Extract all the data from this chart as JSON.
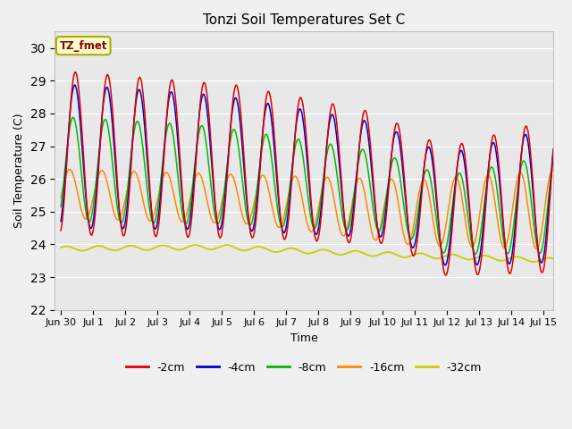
{
  "title": "Tonzi Soil Temperatures Set C",
  "xlabel": "Time",
  "ylabel": "Soil Temperature (C)",
  "annotation": "TZ_fmet",
  "ylim": [
    22.0,
    30.5
  ],
  "yticks": [
    22.0,
    23.0,
    24.0,
    25.0,
    26.0,
    27.0,
    28.0,
    29.0,
    30.0
  ],
  "series_colors": {
    "-2cm": "#dd0000",
    "-4cm": "#0000cc",
    "-8cm": "#00bb00",
    "-16cm": "#ff8800",
    "-32cm": "#cccc00"
  },
  "fig_width": 6.4,
  "fig_height": 4.8,
  "dpi": 100,
  "x_tick_labels": [
    "Jun 30",
    "Jul 1",
    "Jul 2",
    "Jul 3",
    "Jul 4",
    "Jul 5",
    "Jul 6",
    "Jul 7",
    "Jul 8",
    "Jul 9",
    "Jul 10",
    "Jul 11",
    "Jul 12",
    "Jul 13",
    "Jul 14",
    "Jul 15"
  ],
  "x_tick_positions": [
    0,
    1,
    2,
    3,
    4,
    5,
    6,
    7,
    8,
    9,
    10,
    11,
    12,
    13,
    14,
    15
  ],
  "xlim": [
    -0.2,
    15.3
  ]
}
